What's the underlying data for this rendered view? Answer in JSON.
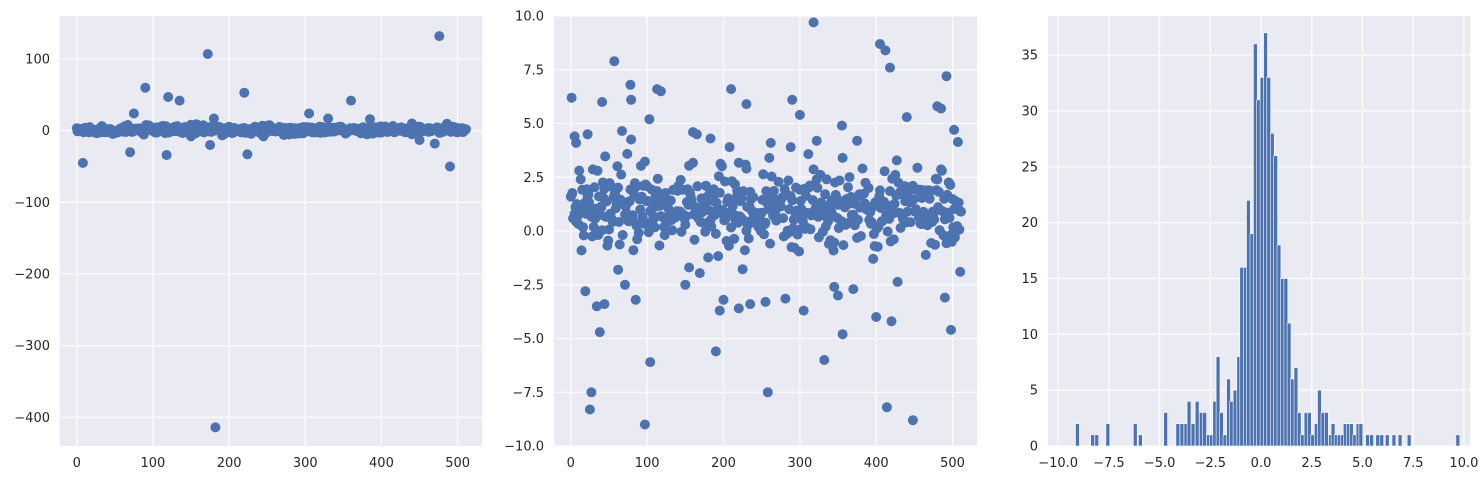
{
  "figure": {
    "panel_count": 3,
    "style": "seaborn-darkgrid",
    "colors": {
      "background": "#EAEAF2",
      "grid": "#FFFFFF",
      "marker": "#4C72B0",
      "text": "#262626"
    }
  },
  "chart_data": [
    {
      "type": "scatter",
      "title": "",
      "xlabel": "",
      "ylabel": "",
      "xlim": [
        -22,
        532
      ],
      "ylim": [
        -440,
        160
      ],
      "xticks": [
        0,
        100,
        200,
        300,
        400,
        500
      ],
      "yticks": [
        -400,
        -300,
        -200,
        -100,
        0,
        100
      ],
      "xtick_labels": [
        "0",
        "100",
        "200",
        "300",
        "400",
        "500"
      ],
      "ytick_labels": [
        "−400",
        "−300",
        "−200",
        "−100",
        "0",
        "100"
      ],
      "outliers": [
        [
          8,
          -45
        ],
        [
          70,
          -30
        ],
        [
          75,
          24
        ],
        [
          90,
          60
        ],
        [
          118,
          -34
        ],
        [
          120,
          47
        ],
        [
          135,
          42
        ],
        [
          172,
          107
        ],
        [
          175,
          -20
        ],
        [
          180,
          17
        ],
        [
          182,
          -414
        ],
        [
          220,
          53
        ],
        [
          224,
          -33
        ],
        [
          305,
          24
        ],
        [
          330,
          17
        ],
        [
          360,
          42
        ],
        [
          385,
          16
        ],
        [
          440,
          10
        ],
        [
          450,
          -13
        ],
        [
          470,
          -18
        ],
        [
          476,
          132
        ],
        [
          490,
          -50
        ],
        [
          440,
          -5
        ],
        [
          150,
          -8
        ],
        [
          245,
          -8
        ]
      ]
    },
    {
      "type": "scatter",
      "title": "",
      "xlabel": "",
      "ylabel": "",
      "xlim": [
        -22,
        532
      ],
      "ylim": [
        -10,
        10
      ],
      "xticks": [
        0,
        100,
        200,
        300,
        400,
        500
      ],
      "yticks": [
        -10,
        -7.5,
        -5,
        -2.5,
        0,
        2.5,
        5,
        7.5,
        10
      ],
      "xtick_labels": [
        "0",
        "100",
        "200",
        "300",
        "400",
        "500"
      ],
      "ytick_labels": [
        "−10.0",
        "−7.5",
        "−5.0",
        "−2.5",
        "0.0",
        "2.5",
        "5.0",
        "7.5",
        "10.0"
      ],
      "outliers": [
        [
          1,
          6.2
        ],
        [
          5,
          4.4
        ],
        [
          7,
          4.1
        ],
        [
          19,
          -2.8
        ],
        [
          22,
          4.5
        ],
        [
          25,
          -8.3
        ],
        [
          27,
          -7.5
        ],
        [
          34,
          -3.5
        ],
        [
          38,
          -4.7
        ],
        [
          41,
          6.0
        ],
        [
          44,
          -3.4
        ],
        [
          57,
          7.9
        ],
        [
          62,
          -1.8
        ],
        [
          71,
          -2.5
        ],
        [
          78,
          6.8
        ],
        [
          79,
          6.1
        ],
        [
          85,
          -3.2
        ],
        [
          97,
          -9.0
        ],
        [
          103,
          5.2
        ],
        [
          104,
          -6.1
        ],
        [
          113,
          6.6
        ],
        [
          118,
          6.5
        ],
        [
          150,
          -2.5
        ],
        [
          155,
          -1.7
        ],
        [
          160,
          4.6
        ],
        [
          165,
          4.5
        ],
        [
          183,
          4.3
        ],
        [
          190,
          -5.6
        ],
        [
          195,
          -3.7
        ],
        [
          200,
          -3.2
        ],
        [
          208,
          3.9
        ],
        [
          210,
          6.6
        ],
        [
          220,
          -3.6
        ],
        [
          230,
          5.9
        ],
        [
          235,
          -3.4
        ],
        [
          255,
          -3.3
        ],
        [
          258,
          -7.5
        ],
        [
          262,
          4.1
        ],
        [
          290,
          6.1
        ],
        [
          300,
          5.4
        ],
        [
          305,
          -3.7
        ],
        [
          318,
          9.7
        ],
        [
          322,
          4.2
        ],
        [
          332,
          -6.0
        ],
        [
          345,
          -2.6
        ],
        [
          350,
          -3.0
        ],
        [
          355,
          4.9
        ],
        [
          356,
          -4.8
        ],
        [
          370,
          -2.7
        ],
        [
          375,
          4.2
        ],
        [
          400,
          -4.0
        ],
        [
          405,
          8.7
        ],
        [
          412,
          8.4
        ],
        [
          414,
          -8.2
        ],
        [
          418,
          7.6
        ],
        [
          420,
          -4.2
        ],
        [
          440,
          5.3
        ],
        [
          448,
          -8.8
        ],
        [
          480,
          5.8
        ],
        [
          485,
          5.7
        ],
        [
          490,
          -3.1
        ],
        [
          492,
          7.2
        ],
        [
          498,
          -4.6
        ],
        [
          502,
          4.7
        ],
        [
          510,
          -1.9
        ],
        [
          288,
          3.9
        ],
        [
          230,
          2.9
        ],
        [
          260,
          3.4
        ]
      ]
    },
    {
      "type": "bar",
      "title": "",
      "xlabel": "",
      "ylabel": "",
      "xlim": [
        -10.5,
        10.3
      ],
      "ylim": [
        0,
        38.5
      ],
      "bin_width": 0.19,
      "xticks": [
        -10,
        -7.5,
        -5,
        -2.5,
        0,
        2.5,
        5,
        7.5,
        10
      ],
      "yticks": [
        0,
        5,
        10,
        15,
        20,
        25,
        30,
        35
      ],
      "xtick_labels": [
        "−10.0",
        "−7.5",
        "−5.0",
        "−2.5",
        "0.0",
        "2.5",
        "5.0",
        "7.5",
        "10.0"
      ],
      "ytick_labels": [
        "0",
        "5",
        "10",
        "15",
        "20",
        "25",
        "30",
        "35"
      ],
      "bins": [
        [
          -9.05,
          2
        ],
        [
          -8.3,
          1
        ],
        [
          -8.1,
          1
        ],
        [
          -7.55,
          2
        ],
        [
          -6.2,
          2
        ],
        [
          -5.95,
          1
        ],
        [
          -4.7,
          3
        ],
        [
          -4.1,
          2
        ],
        [
          -3.9,
          2
        ],
        [
          -3.7,
          2
        ],
        [
          -3.55,
          4
        ],
        [
          -3.35,
          2
        ],
        [
          -3.15,
          4
        ],
        [
          -2.95,
          3
        ],
        [
          -2.78,
          3
        ],
        [
          -2.6,
          1
        ],
        [
          -2.45,
          1
        ],
        [
          -2.28,
          4
        ],
        [
          -2.12,
          8
        ],
        [
          -1.95,
          3
        ],
        [
          -1.78,
          1
        ],
        [
          -1.6,
          6
        ],
        [
          -1.45,
          4
        ],
        [
          -1.28,
          5
        ],
        [
          -1.1,
          8
        ],
        [
          -0.95,
          16
        ],
        [
          -0.78,
          16
        ],
        [
          -0.62,
          22
        ],
        [
          -0.45,
          19
        ],
        [
          -0.28,
          36
        ],
        [
          -0.12,
          31
        ],
        [
          0.05,
          33
        ],
        [
          0.22,
          37
        ],
        [
          0.38,
          33
        ],
        [
          0.55,
          28
        ],
        [
          0.72,
          26
        ],
        [
          0.88,
          18
        ],
        [
          1.05,
          15
        ],
        [
          1.22,
          15
        ],
        [
          1.38,
          11
        ],
        [
          1.55,
          6
        ],
        [
          1.72,
          7
        ],
        [
          1.88,
          3
        ],
        [
          2.05,
          1
        ],
        [
          2.22,
          3
        ],
        [
          2.38,
          3
        ],
        [
          2.55,
          1
        ],
        [
          2.72,
          2
        ],
        [
          2.88,
          5
        ],
        [
          3.05,
          3
        ],
        [
          3.22,
          3
        ],
        [
          3.42,
          1
        ],
        [
          3.55,
          2
        ],
        [
          3.7,
          1
        ],
        [
          3.85,
          1
        ],
        [
          4.0,
          1
        ],
        [
          4.15,
          2
        ],
        [
          4.3,
          2
        ],
        [
          4.45,
          2
        ],
        [
          4.62,
          1
        ],
        [
          4.78,
          2
        ],
        [
          4.92,
          2
        ],
        [
          5.25,
          1
        ],
        [
          5.45,
          1
        ],
        [
          5.75,
          1
        ],
        [
          5.95,
          1
        ],
        [
          6.22,
          1
        ],
        [
          6.55,
          1
        ],
        [
          6.85,
          1
        ],
        [
          7.3,
          1
        ],
        [
          9.7,
          1
        ]
      ]
    }
  ]
}
